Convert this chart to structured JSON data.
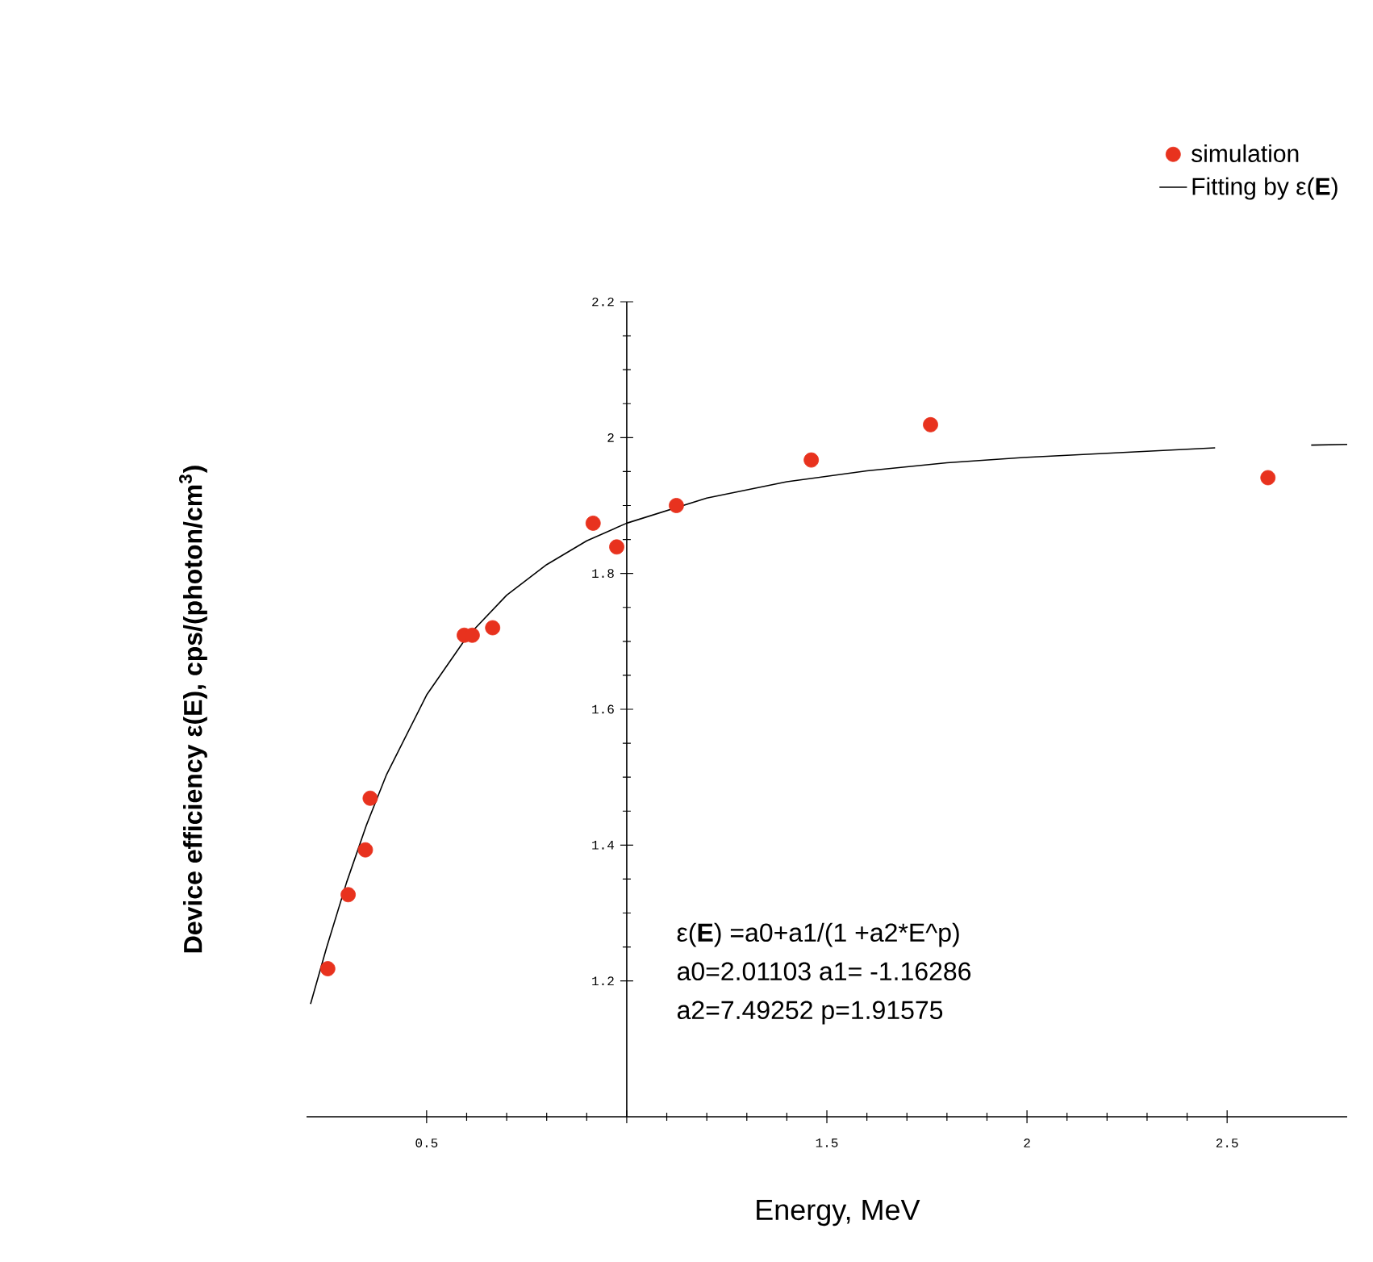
{
  "chart_data": {
    "type": "scatter",
    "xlabel": "Energy, MeV",
    "ylabel": "Device efficiency ε(**E**), cps/(photon/cm$^{3}$)",
    "xlim": [
      0.2,
      2.8
    ],
    "ylim": [
      1.0,
      2.2
    ],
    "xticks": [
      0.5,
      {
        "value": 1,
        "label": null
      },
      1.5,
      2,
      2.5
    ],
    "yticks": [
      1.2,
      1.4,
      1.6,
      1.8,
      2,
      2.2
    ],
    "legend": "top right",
    "marker": "circle",
    "annotations": [
      "ε(**E**) =a0+a1/(1 +a2*E^p)",
      "a0=2.01103  a1= -1.16286",
      "a2=7.49252  p=1.91575"
    ],
    "series": [
      {
        "name": "simulation",
        "color": "#e8321e",
        "x": [
          0.253,
          0.304,
          0.347,
          0.359,
          0.594,
          0.614,
          0.665,
          0.916,
          0.975,
          1.124,
          1.461,
          1.759,
          2.602
        ],
        "values": [
          1.218,
          1.327,
          1.393,
          1.469,
          1.709,
          1.709,
          1.72,
          1.874,
          1.839,
          1.9,
          1.967,
          2.019,
          1.941
        ]
      },
      {
        "name": "Fitting by ε(**E**)",
        "type": "line",
        "marker": "none",
        "color": "#000000",
        "x": [
          0.21,
          0.25,
          0.3,
          0.35,
          0.4,
          0.5,
          0.6,
          0.7,
          0.8,
          0.9,
          1.0,
          1.2,
          1.4,
          1.6,
          1.8,
          2.0,
          2.2,
          2.47,
          2.6,
          2.71,
          2.8
        ],
        "values": [
          1.166,
          1.249,
          1.345,
          1.43,
          1.504,
          1.621,
          1.706,
          1.768,
          1.813,
          1.848,
          1.874,
          1.911,
          1.935,
          1.951,
          1.963,
          1.971,
          1.977,
          1.985,
          null,
          1.989,
          1.99
        ]
      }
    ]
  }
}
